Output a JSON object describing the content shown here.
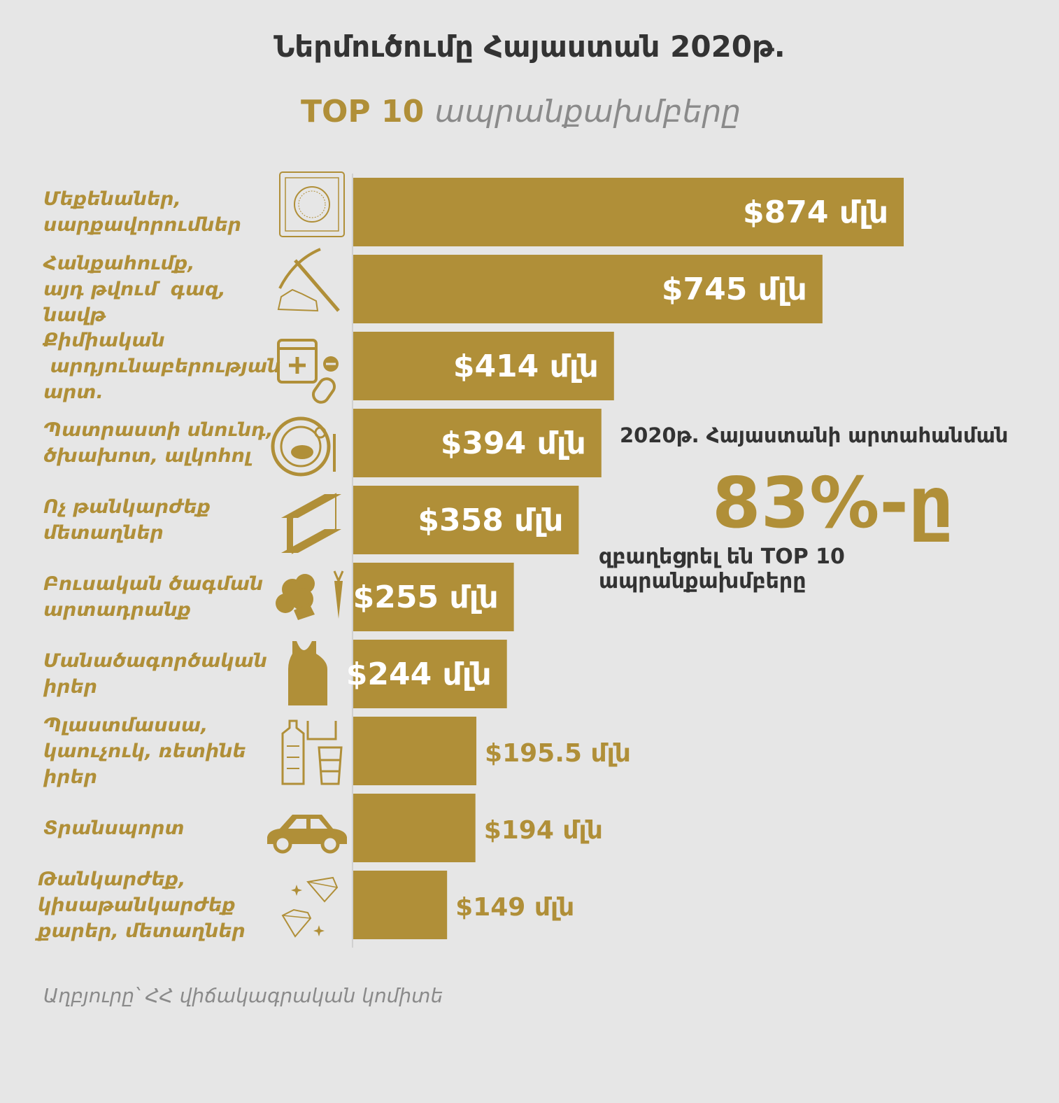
{
  "chart_data": {
    "type": "bar",
    "orientation": "horizontal",
    "title": "Ներմուծումը Հայաստան 2020թ.",
    "subtitle_highlight": "TOP 10",
    "subtitle_rest": "ապրանքախմբերը",
    "unit_suffix": "մլն",
    "currency": "$",
    "categories": [
      [
        "Մեքենաներ,",
        "սարքավորումներ"
      ],
      [
        "Հանքահումք,",
        "այդ թվում  գազ,",
        "նավթ"
      ],
      [
        "Քիմիական",
        " արդյունաբերության",
        "արտ."
      ],
      [
        "Պատրաստի սնունդ,",
        "ծխախոտ, ալկոհոլ"
      ],
      [
        "Ոչ թանկարժեք",
        "մետաղներ"
      ],
      [
        "Բուսական ծագման",
        "արտադրանք"
      ],
      [
        "Մանածագործական",
        "իրեր"
      ],
      [
        "Պլաստմասսա,",
        "կաուչուկ, ռետինե",
        "իրեր"
      ],
      [
        "Տրանսպորտ"
      ],
      [
        "Թանկարժեք,",
        "կիսաթանկարժեք",
        "քարեր, մետաղներ"
      ]
    ],
    "values": [
      874,
      745,
      414,
      394,
      358,
      255,
      244,
      195.5,
      194,
      149
    ],
    "value_labels": [
      "$874 մլն",
      "$745 մլն",
      "$414 մլն",
      "$394 մլն",
      "$358 մլն",
      "$255 մլն",
      "$244 մլն",
      "$195.5 մլն",
      "$194 մլն",
      "$149 մլն"
    ],
    "icons": [
      "washing-machine-icon",
      "pickaxe-icon",
      "medicine-icon",
      "food-plate-icon",
      "metal-beam-icon",
      "broccoli-carrot-icon",
      "tank-top-icon",
      "plastic-bottles-icon",
      "car-icon",
      "diamonds-icon"
    ],
    "xlim": [
      0,
      874
    ],
    "bar_color": "#b08f38"
  },
  "annotation": {
    "line1": "2020թ. Հայաստանի  արտահանման",
    "big": "83%-ը",
    "line2": "զբաղեցրել են TOP 10 ապրանքախմբերը"
  },
  "source": "Աղբյուրը՝  ՀՀ վիճակագրական կոմիտե",
  "colors": {
    "accent": "#b08f38",
    "background": "#e6e6e6",
    "text_dark": "#333333",
    "text_gray": "#8a8a8a"
  }
}
